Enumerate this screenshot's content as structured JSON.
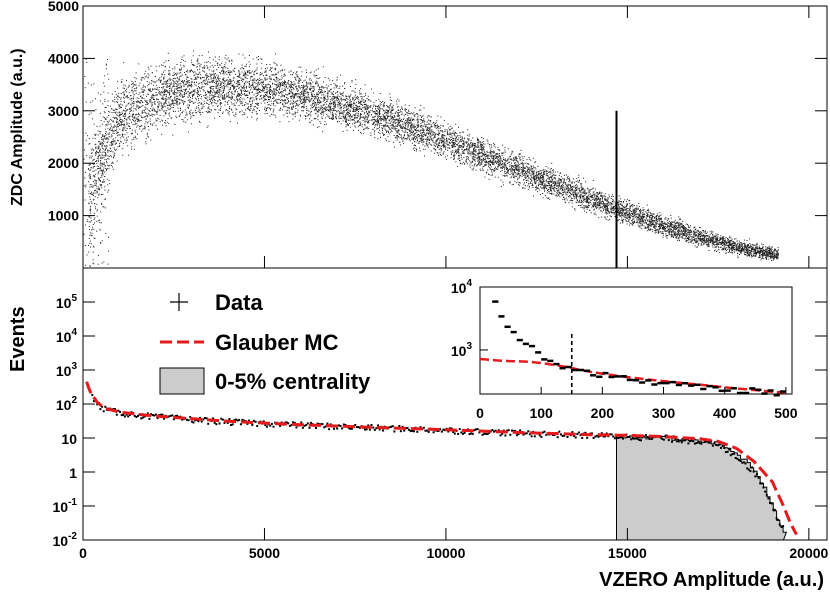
{
  "chart_data": [
    {
      "type": "scatter",
      "panel": "top",
      "xlabel": "",
      "ylabel": "ZDC Amplitude (a.u.)",
      "xlim": [
        0,
        20500
      ],
      "ylim": [
        0,
        5000
      ],
      "y_ticks": [
        1000,
        2000,
        3000,
        4000,
        5000
      ],
      "y_tick_labels": [
        "1000",
        "2000",
        "3000",
        "4000",
        "5000"
      ],
      "band": {
        "description_points_x": [
          200,
          1000,
          2000,
          3000,
          4000,
          5000,
          6000,
          7000,
          8000,
          9000,
          10000,
          11000,
          12000,
          13000,
          14000,
          15000,
          16000,
          17000,
          18000,
          19000
        ],
        "center_y": [
          1500,
          2900,
          3250,
          3420,
          3470,
          3430,
          3330,
          3150,
          2940,
          2700,
          2440,
          2160,
          1880,
          1600,
          1320,
          1060,
          810,
          600,
          410,
          270
        ],
        "spread_y": [
          900,
          620,
          560,
          520,
          480,
          440,
          400,
          370,
          340,
          320,
          300,
          280,
          260,
          240,
          220,
          200,
          180,
          160,
          140,
          110
        ]
      },
      "cut_line": {
        "x": 14700,
        "y_range": [
          0,
          3000
        ]
      }
    },
    {
      "type": "line",
      "panel": "bottom",
      "xlabel": "VZERO Amplitude (a.u.)",
      "ylabel": "Events",
      "xlim": [
        0,
        20500
      ],
      "ylim_log10": [
        -2,
        6
      ],
      "x_ticks": [
        0,
        5000,
        10000,
        15000,
        20000
      ],
      "x_tick_labels": [
        "0",
        "5000",
        "10000",
        "15000",
        "20000"
      ],
      "y_ticks_log10": [
        -2,
        -1,
        0,
        1,
        2,
        3,
        4,
        5
      ],
      "y_tick_labels": [
        {
          "base": "10",
          "exp": "-2"
        },
        {
          "base": "10",
          "exp": "-1"
        },
        {
          "base": "1",
          "exp": ""
        },
        {
          "base": "10",
          "exp": ""
        },
        {
          "base": "10",
          "exp": "2"
        },
        {
          "base": "10",
          "exp": "3"
        },
        {
          "base": "10",
          "exp": "4"
        },
        {
          "base": "10",
          "exp": "5"
        }
      ],
      "series": [
        {
          "name": "Data",
          "style": "black-points",
          "x": [
            100,
            200,
            400,
            600,
            1000,
            1500,
            2000,
            3000,
            4000,
            5000,
            6000,
            7000,
            8000,
            9000,
            10000,
            11000,
            12000,
            13000,
            14000,
            15000,
            16000,
            17000,
            17500,
            18000,
            18500,
            18800,
            19000,
            19200
          ],
          "y": [
            400,
            200,
            100,
            70,
            55,
            48,
            42,
            35,
            30,
            27,
            24,
            22,
            20,
            18.5,
            17,
            15.5,
            14,
            13,
            12,
            11,
            10,
            8,
            6,
            3,
            1,
            0.3,
            0.1,
            0.03
          ]
        },
        {
          "name": "Glauber MC",
          "style": "red-dashed",
          "x": [
            100,
            200,
            400,
            600,
            1000,
            1500,
            2000,
            3000,
            4000,
            5000,
            6000,
            7000,
            8000,
            9000,
            10000,
            11000,
            12000,
            13000,
            14000,
            15000,
            16000,
            17000,
            17500,
            18000,
            18500,
            19000,
            19300,
            19500,
            19700
          ],
          "y": [
            450,
            220,
            110,
            75,
            58,
            50,
            44,
            37,
            31,
            27.5,
            24.5,
            22.5,
            20.5,
            19,
            17.5,
            16,
            14.5,
            13.5,
            12.5,
            12,
            11,
            9.5,
            8,
            5,
            2,
            0.5,
            0.1,
            0.03,
            0.012
          ]
        },
        {
          "name": "0-5% centrality",
          "style": "grey-filled-hist",
          "x_range": [
            14700,
            19300
          ],
          "x": [
            14700,
            15000,
            15500,
            16000,
            16500,
            17000,
            17500,
            18000,
            18400,
            18700,
            18900,
            19100,
            19300
          ],
          "y": [
            11,
            11,
            10.5,
            10,
            9.5,
            8.5,
            7,
            4,
            1.5,
            0.5,
            0.2,
            0.06,
            0.02
          ]
        }
      ],
      "legend": {
        "placement": "top-left",
        "entries": [
          "Data",
          "Glauber MC",
          "0-5% centrality"
        ]
      }
    },
    {
      "type": "line",
      "panel": "inset",
      "xlim": [
        0,
        510
      ],
      "ylim_log10": [
        2.3,
        4
      ],
      "x_ticks": [
        0,
        100,
        200,
        300,
        400,
        500
      ],
      "x_tick_labels": [
        "0",
        "100",
        "200",
        "300",
        "400",
        "500"
      ],
      "y_ticks_log10": [
        3,
        4
      ],
      "y_tick_labels": [
        {
          "base": "10",
          "exp": "3"
        },
        {
          "base": "10",
          "exp": "4"
        }
      ],
      "cut_line": {
        "x": 150,
        "style": "dashed"
      },
      "series": [
        {
          "name": "Data",
          "style": "black-points",
          "x": [
            25,
            35,
            45,
            55,
            65,
            75,
            85,
            95,
            105,
            115,
            125,
            140,
            160,
            180,
            200,
            230,
            260,
            300,
            340,
            380,
            420,
            460,
            490
          ],
          "y": [
            5500,
            3600,
            2500,
            1900,
            1500,
            1250,
            1050,
            900,
            780,
            690,
            620,
            540,
            480,
            440,
            400,
            360,
            330,
            300,
            270,
            250,
            230,
            220,
            210
          ]
        },
        {
          "name": "Glauber MC",
          "style": "red-dashed",
          "x": [
            0,
            20,
            40,
            60,
            80,
            100,
            120,
            140,
            160,
            180,
            200,
            240,
            280,
            320,
            360,
            400,
            440,
            480,
            500
          ],
          "y": [
            720,
            690,
            670,
            660,
            650,
            620,
            580,
            540,
            490,
            450,
            420,
            370,
            335,
            305,
            280,
            255,
            235,
            215,
            210
          ]
        }
      ]
    }
  ]
}
